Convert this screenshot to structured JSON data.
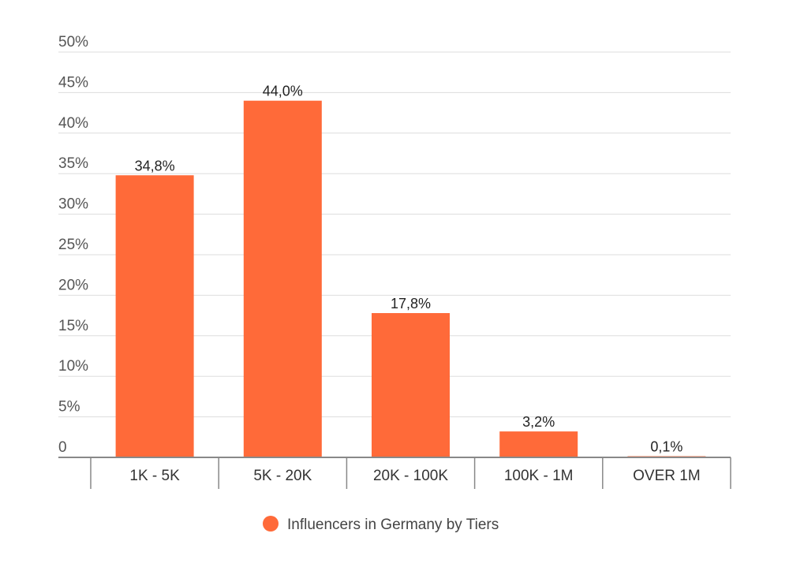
{
  "chart_data": {
    "type": "bar",
    "categories": [
      "1K - 5K",
      "5K - 20K",
      "20K - 100K",
      "100K - 1M",
      "OVER 1M"
    ],
    "series": [
      {
        "name": "Influencers in Germany by Tiers",
        "values": [
          34.8,
          44.0,
          17.8,
          3.2,
          0.1
        ],
        "value_labels": [
          "34,8%",
          "44,0%",
          "17,8%",
          "3,2%",
          "0,1%"
        ],
        "color": "#ff6a39"
      }
    ],
    "y_ticks": [
      0,
      5,
      10,
      15,
      20,
      25,
      30,
      35,
      40,
      45,
      50
    ],
    "y_tick_labels": [
      "0",
      "5%",
      "10%",
      "15%",
      "20%",
      "25%",
      "30%",
      "35%",
      "40%",
      "45%",
      "50%"
    ],
    "ylim": [
      0,
      50
    ],
    "grid": true,
    "legend_position": "bottom-center",
    "colors": {
      "bar": "#ff6a39",
      "grid": "#dddddd",
      "axis": "#888888"
    }
  }
}
